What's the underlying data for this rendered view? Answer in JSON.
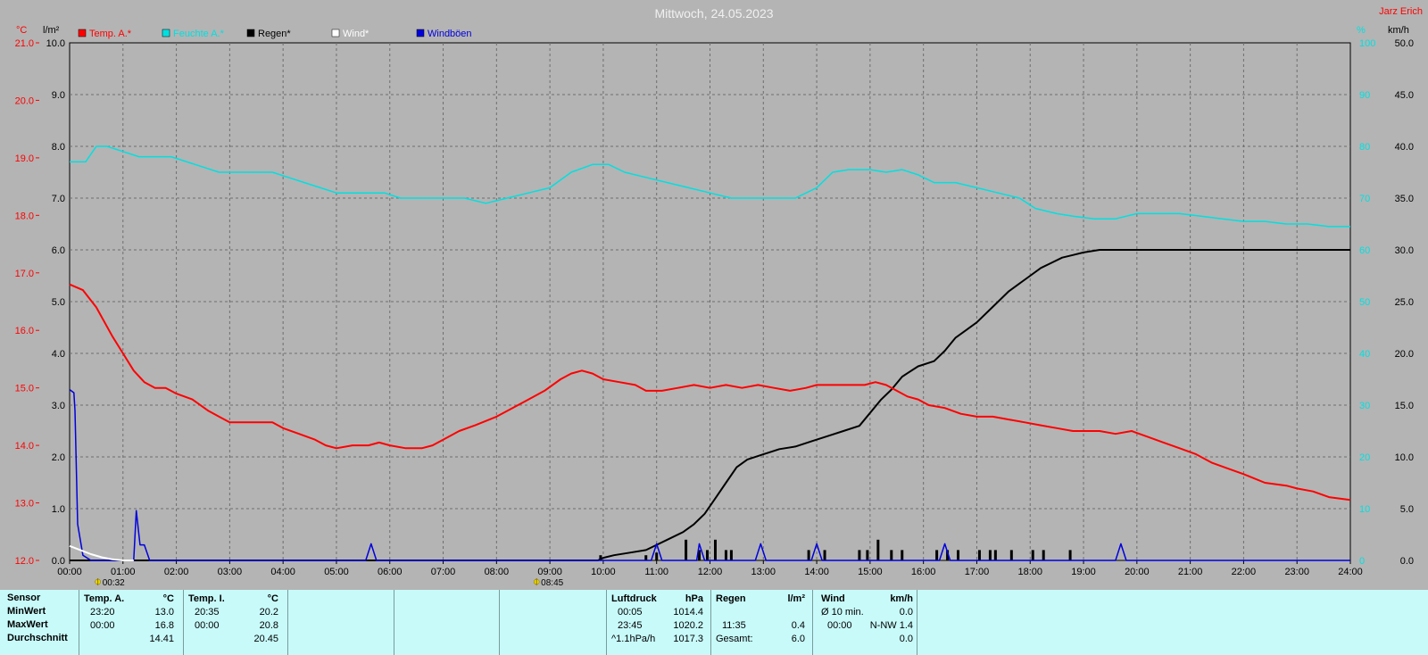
{
  "title": "Mittwoch, 24.05.2023",
  "station_name": "Jarz Erich",
  "units": {
    "temp": "°C",
    "rain": "l/m²",
    "humidity": "%",
    "wind": "km/h"
  },
  "legend": [
    {
      "label": "Temp. A.*",
      "color": "#ff0000"
    },
    {
      "label": "Feuchte A.*",
      "color": "#00e0e0"
    },
    {
      "label": "Regen*",
      "color": "#000000"
    },
    {
      "label": "Wind*",
      "color": "#ffffff"
    },
    {
      "label": "Windböen",
      "color": "#0000dd"
    }
  ],
  "markers": [
    {
      "time": "00:32",
      "hour": 0.53,
      "icon": "sunrise-icon"
    },
    {
      "time": "08:45",
      "hour": 8.75,
      "icon": "sunset-icon"
    }
  ],
  "chart_data": {
    "type": "line",
    "x_ticks": [
      "00:00",
      "01:00",
      "02:00",
      "03:00",
      "04:00",
      "05:00",
      "06:00",
      "07:00",
      "08:00",
      "09:00",
      "10:00",
      "11:00",
      "12:00",
      "13:00",
      "14:00",
      "15:00",
      "16:00",
      "17:00",
      "18:00",
      "19:00",
      "20:00",
      "21:00",
      "22:00",
      "23:00",
      "24:00"
    ],
    "xlim": [
      0,
      24
    ],
    "axes": {
      "temp": {
        "ylim": [
          12,
          21
        ],
        "ticks": [
          "12.0",
          "13.0",
          "14.0",
          "15.0",
          "16.0",
          "17.0",
          "18.0",
          "19.0",
          "20.0",
          "21.0"
        ]
      },
      "rain": {
        "ylim": [
          0,
          10
        ],
        "ticks": [
          "0.0",
          "1.0",
          "2.0",
          "3.0",
          "4.0",
          "5.0",
          "6.0",
          "7.0",
          "8.0",
          "9.0",
          "10.0"
        ]
      },
      "humidity": {
        "ylim": [
          0,
          100
        ],
        "ticks": [
          "0",
          "10",
          "20",
          "30",
          "40",
          "50",
          "60",
          "70",
          "80",
          "90",
          "100"
        ]
      },
      "wind": {
        "ylim": [
          0,
          50
        ],
        "ticks": [
          "0.0",
          "5.0",
          "10.0",
          "15.0",
          "20.0",
          "25.0",
          "30.0",
          "35.0",
          "40.0",
          "45.0",
          "50.0"
        ]
      }
    },
    "grid": true,
    "series": [
      {
        "name": "Temp. A.*",
        "axis": "temp",
        "color": "#ff0000",
        "points": [
          [
            0,
            16.8
          ],
          [
            0.25,
            16.7
          ],
          [
            0.5,
            16.4
          ],
          [
            0.8,
            15.9
          ],
          [
            1.0,
            15.6
          ],
          [
            1.2,
            15.3
          ],
          [
            1.4,
            15.1
          ],
          [
            1.6,
            15.0
          ],
          [
            1.8,
            15.0
          ],
          [
            2.0,
            14.9
          ],
          [
            2.3,
            14.8
          ],
          [
            2.6,
            14.6
          ],
          [
            2.8,
            14.5
          ],
          [
            3.0,
            14.4
          ],
          [
            3.5,
            14.4
          ],
          [
            3.8,
            14.4
          ],
          [
            4.0,
            14.3
          ],
          [
            4.3,
            14.2
          ],
          [
            4.6,
            14.1
          ],
          [
            4.8,
            14.0
          ],
          [
            5.0,
            13.95
          ],
          [
            5.3,
            14.0
          ],
          [
            5.6,
            14.0
          ],
          [
            5.8,
            14.05
          ],
          [
            6.0,
            14.0
          ],
          [
            6.3,
            13.95
          ],
          [
            6.6,
            13.95
          ],
          [
            6.8,
            14.0
          ],
          [
            7.0,
            14.1
          ],
          [
            7.3,
            14.25
          ],
          [
            7.6,
            14.35
          ],
          [
            8.0,
            14.5
          ],
          [
            8.3,
            14.65
          ],
          [
            8.6,
            14.8
          ],
          [
            8.9,
            14.95
          ],
          [
            9.2,
            15.15
          ],
          [
            9.4,
            15.25
          ],
          [
            9.6,
            15.3
          ],
          [
            9.8,
            15.25
          ],
          [
            10.0,
            15.15
          ],
          [
            10.3,
            15.1
          ],
          [
            10.6,
            15.05
          ],
          [
            10.8,
            14.95
          ],
          [
            11.1,
            14.95
          ],
          [
            11.4,
            15.0
          ],
          [
            11.7,
            15.05
          ],
          [
            12.0,
            15.0
          ],
          [
            12.3,
            15.05
          ],
          [
            12.6,
            15.0
          ],
          [
            12.9,
            15.05
          ],
          [
            13.2,
            15.0
          ],
          [
            13.5,
            14.95
          ],
          [
            13.8,
            15.0
          ],
          [
            14.0,
            15.05
          ],
          [
            14.3,
            15.05
          ],
          [
            14.6,
            15.05
          ],
          [
            14.9,
            15.05
          ],
          [
            15.1,
            15.1
          ],
          [
            15.3,
            15.05
          ],
          [
            15.5,
            14.95
          ],
          [
            15.7,
            14.85
          ],
          [
            15.9,
            14.8
          ],
          [
            16.1,
            14.7
          ],
          [
            16.4,
            14.65
          ],
          [
            16.7,
            14.55
          ],
          [
            17.0,
            14.5
          ],
          [
            17.3,
            14.5
          ],
          [
            17.6,
            14.45
          ],
          [
            17.9,
            14.4
          ],
          [
            18.2,
            14.35
          ],
          [
            18.5,
            14.3
          ],
          [
            18.8,
            14.25
          ],
          [
            19.0,
            14.25
          ],
          [
            19.3,
            14.25
          ],
          [
            19.6,
            14.2
          ],
          [
            19.9,
            14.25
          ],
          [
            20.2,
            14.15
          ],
          [
            20.5,
            14.05
          ],
          [
            20.8,
            13.95
          ],
          [
            21.1,
            13.85
          ],
          [
            21.4,
            13.7
          ],
          [
            21.7,
            13.6
          ],
          [
            22.0,
            13.5
          ],
          [
            22.4,
            13.35
          ],
          [
            22.8,
            13.3
          ],
          [
            23.0,
            13.25
          ],
          [
            23.3,
            13.2
          ],
          [
            23.6,
            13.1
          ],
          [
            24.0,
            13.05
          ]
        ]
      },
      {
        "name": "Feuchte A.*",
        "axis": "humidity",
        "color": "#00e0e0",
        "points": [
          [
            0,
            77
          ],
          [
            0.3,
            77
          ],
          [
            0.5,
            80
          ],
          [
            0.7,
            80
          ],
          [
            1.0,
            79
          ],
          [
            1.3,
            78
          ],
          [
            1.6,
            78
          ],
          [
            1.9,
            78
          ],
          [
            2.2,
            77
          ],
          [
            2.5,
            76
          ],
          [
            2.8,
            75
          ],
          [
            3.1,
            75
          ],
          [
            3.5,
            75
          ],
          [
            3.8,
            75
          ],
          [
            4.1,
            74
          ],
          [
            4.4,
            73
          ],
          [
            4.7,
            72
          ],
          [
            5.0,
            71
          ],
          [
            5.3,
            71
          ],
          [
            5.6,
            71
          ],
          [
            5.9,
            71
          ],
          [
            6.2,
            70
          ],
          [
            6.6,
            70
          ],
          [
            7.0,
            70
          ],
          [
            7.4,
            70
          ],
          [
            7.8,
            69
          ],
          [
            8.2,
            70
          ],
          [
            8.6,
            71
          ],
          [
            9.0,
            72
          ],
          [
            9.4,
            75
          ],
          [
            9.8,
            76.5
          ],
          [
            10.1,
            76.5
          ],
          [
            10.4,
            75
          ],
          [
            10.8,
            74
          ],
          [
            11.2,
            73
          ],
          [
            11.6,
            72
          ],
          [
            12.0,
            71
          ],
          [
            12.4,
            70
          ],
          [
            12.8,
            70
          ],
          [
            13.2,
            70
          ],
          [
            13.6,
            70
          ],
          [
            14.0,
            72
          ],
          [
            14.3,
            75
          ],
          [
            14.6,
            75.5
          ],
          [
            15.0,
            75.5
          ],
          [
            15.3,
            75
          ],
          [
            15.6,
            75.5
          ],
          [
            15.9,
            74.5
          ],
          [
            16.2,
            73
          ],
          [
            16.6,
            73
          ],
          [
            17.0,
            72
          ],
          [
            17.4,
            71
          ],
          [
            17.8,
            70
          ],
          [
            18.1,
            68
          ],
          [
            18.5,
            67
          ],
          [
            18.8,
            66.5
          ],
          [
            19.2,
            66
          ],
          [
            19.6,
            66
          ],
          [
            20.0,
            67
          ],
          [
            20.4,
            67
          ],
          [
            20.8,
            67
          ],
          [
            21.2,
            66.5
          ],
          [
            21.6,
            66
          ],
          [
            22.0,
            65.5
          ],
          [
            22.4,
            65.5
          ],
          [
            22.8,
            65
          ],
          [
            23.2,
            65
          ],
          [
            23.6,
            64.5
          ],
          [
            24.0,
            64.5
          ]
        ]
      },
      {
        "name": "Regen*",
        "axis": "rain",
        "color": "#000000",
        "points": [
          [
            0,
            0
          ],
          [
            9.9,
            0
          ],
          [
            10.0,
            0.05
          ],
          [
            10.2,
            0.1
          ],
          [
            10.5,
            0.15
          ],
          [
            10.8,
            0.2
          ],
          [
            11.0,
            0.3
          ],
          [
            11.2,
            0.4
          ],
          [
            11.5,
            0.55
          ],
          [
            11.7,
            0.7
          ],
          [
            11.9,
            0.9
          ],
          [
            12.1,
            1.2
          ],
          [
            12.3,
            1.5
          ],
          [
            12.5,
            1.8
          ],
          [
            12.7,
            1.95
          ],
          [
            13.0,
            2.05
          ],
          [
            13.3,
            2.15
          ],
          [
            13.6,
            2.2
          ],
          [
            13.9,
            2.3
          ],
          [
            14.2,
            2.4
          ],
          [
            14.5,
            2.5
          ],
          [
            14.8,
            2.6
          ],
          [
            15.0,
            2.85
          ],
          [
            15.2,
            3.1
          ],
          [
            15.4,
            3.3
          ],
          [
            15.6,
            3.55
          ],
          [
            15.9,
            3.75
          ],
          [
            16.2,
            3.85
          ],
          [
            16.4,
            4.05
          ],
          [
            16.6,
            4.3
          ],
          [
            16.8,
            4.45
          ],
          [
            17.0,
            4.6
          ],
          [
            17.2,
            4.8
          ],
          [
            17.4,
            5.0
          ],
          [
            17.6,
            5.2
          ],
          [
            17.8,
            5.35
          ],
          [
            18.0,
            5.5
          ],
          [
            18.2,
            5.65
          ],
          [
            18.4,
            5.75
          ],
          [
            18.6,
            5.85
          ],
          [
            18.8,
            5.9
          ],
          [
            19.0,
            5.95
          ],
          [
            19.3,
            6.0
          ],
          [
            24.0,
            6.0
          ]
        ]
      },
      {
        "name": "Wind*",
        "axis": "wind",
        "color": "#ffffff",
        "points": [
          [
            0,
            1.4
          ],
          [
            0.2,
            1.0
          ],
          [
            0.4,
            0.6
          ],
          [
            0.6,
            0.3
          ],
          [
            0.8,
            0.1
          ],
          [
            1.0,
            0.0
          ],
          [
            1.2,
            0.0
          ]
        ]
      },
      {
        "name": "Windböen",
        "axis": "wind",
        "color": "#0000dd",
        "points": [
          [
            0,
            16.5
          ],
          [
            0.08,
            16.2
          ],
          [
            0.1,
            14.5
          ],
          [
            0.15,
            3.5
          ],
          [
            0.25,
            0.5
          ],
          [
            0.4,
            0
          ],
          [
            1.2,
            0
          ],
          [
            1.25,
            4.8
          ],
          [
            1.32,
            1.5
          ],
          [
            1.4,
            1.5
          ],
          [
            1.5,
            0
          ],
          [
            5.55,
            0
          ],
          [
            5.65,
            1.6
          ],
          [
            5.75,
            0
          ],
          [
            10.9,
            0
          ],
          [
            11.0,
            1.6
          ],
          [
            11.1,
            0
          ],
          [
            11.75,
            0
          ],
          [
            11.8,
            1.6
          ],
          [
            11.9,
            0
          ],
          [
            12.85,
            0
          ],
          [
            12.95,
            1.6
          ],
          [
            13.05,
            0
          ],
          [
            13.9,
            0
          ],
          [
            14.0,
            1.6
          ],
          [
            14.1,
            0
          ],
          [
            16.3,
            0
          ],
          [
            16.4,
            1.6
          ],
          [
            16.5,
            0
          ],
          [
            19.6,
            0
          ],
          [
            19.7,
            1.6
          ],
          [
            19.8,
            0
          ],
          [
            24,
            0
          ]
        ]
      }
    ],
    "rain_bars": [
      [
        9.95,
        0.1
      ],
      [
        10.8,
        0.1
      ],
      [
        11.0,
        0.15
      ],
      [
        11.55,
        0.4
      ],
      [
        11.8,
        0.2
      ],
      [
        11.95,
        0.2
      ],
      [
        12.1,
        0.4
      ],
      [
        12.3,
        0.2
      ],
      [
        12.4,
        0.2
      ],
      [
        13.85,
        0.2
      ],
      [
        14.15,
        0.2
      ],
      [
        14.8,
        0.2
      ],
      [
        14.95,
        0.2
      ],
      [
        15.15,
        0.4
      ],
      [
        15.4,
        0.2
      ],
      [
        15.6,
        0.2
      ],
      [
        16.25,
        0.2
      ],
      [
        16.45,
        0.2
      ],
      [
        16.65,
        0.2
      ],
      [
        17.05,
        0.2
      ],
      [
        17.25,
        0.2
      ],
      [
        17.35,
        0.2
      ],
      [
        17.65,
        0.2
      ],
      [
        18.05,
        0.2
      ],
      [
        18.25,
        0.2
      ],
      [
        18.75,
        0.2
      ]
    ]
  },
  "table": {
    "row_labels": [
      "Sensor",
      "MinWert",
      "MaxWert",
      "Durchschnitt"
    ],
    "temp_a": {
      "header": "Temp. A.",
      "unit": "°C",
      "min_time": "23:20",
      "min": "13.0",
      "max_time": "00:00",
      "max": "16.8",
      "avg": "14.41"
    },
    "temp_i": {
      "header": "Temp. I.",
      "unit": "°C",
      "min_time": "20:35",
      "min": "20.2",
      "max_time": "00:00",
      "max": "20.8",
      "avg": "20.45"
    },
    "pressure": {
      "header": "Luftdruck",
      "unit": "hPa",
      "min_time": "00:05",
      "min": "1014.4",
      "max_time": "23:45",
      "max": "1020.2",
      "trend": "^1.1hPa/h",
      "avg": "1017.3"
    },
    "rain": {
      "header": "Regen",
      "unit": "l/m²",
      "max_time": "11:35",
      "max": "0.4",
      "total_label": "Gesamt:",
      "total": "6.0"
    },
    "wind": {
      "header": "Wind",
      "unit": "km/h",
      "avg_label": "Ø 10 min.",
      "avg": "0.0",
      "max_time": "00:00",
      "max": "N-NW 1.4",
      "last": "0.0"
    }
  }
}
